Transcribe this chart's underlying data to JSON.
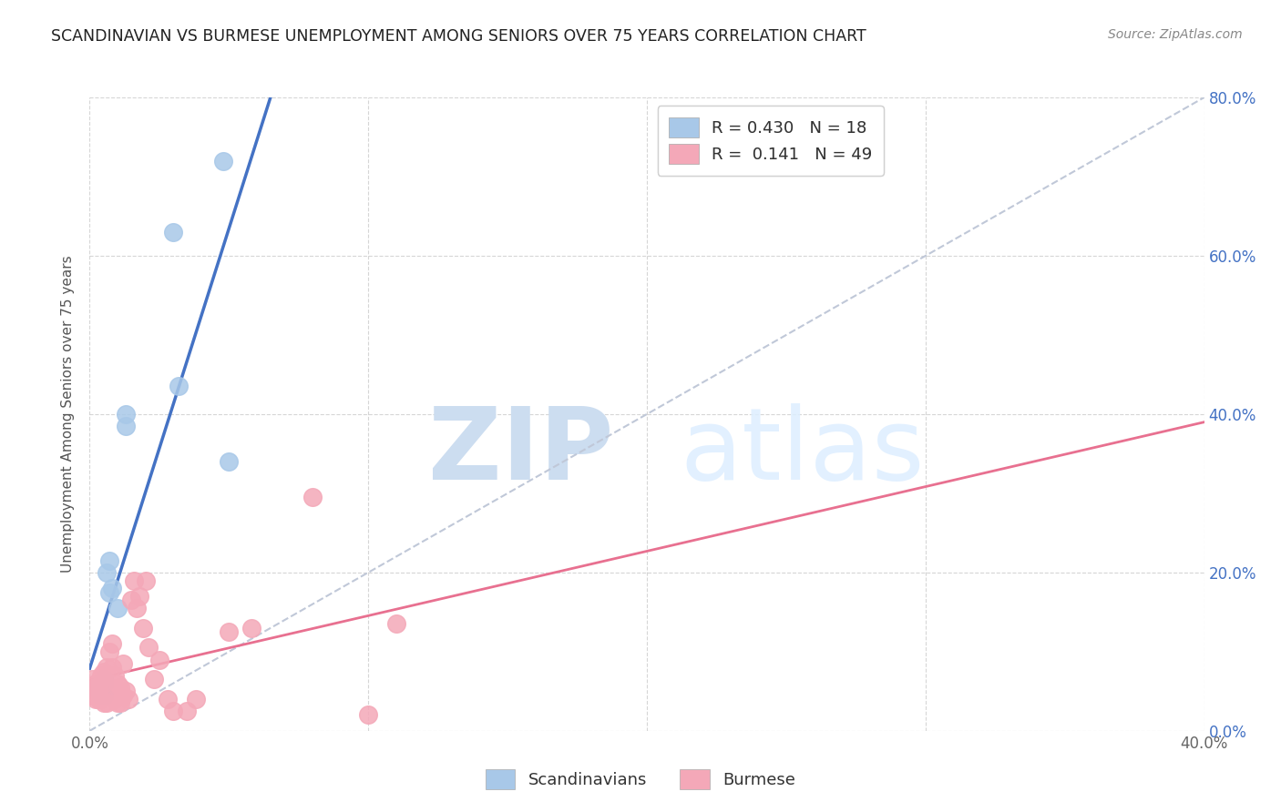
{
  "title": "SCANDINAVIAN VS BURMESE UNEMPLOYMENT AMONG SENIORS OVER 75 YEARS CORRELATION CHART",
  "source": "Source: ZipAtlas.com",
  "ylabel": "Unemployment Among Seniors over 75 years",
  "xlim": [
    0.0,
    0.4
  ],
  "ylim": [
    0.0,
    0.8
  ],
  "xticks": [
    0.0,
    0.1,
    0.2,
    0.3,
    0.4
  ],
  "xticklabels_show": [
    "0.0%",
    "",
    "",
    "",
    "40.0%"
  ],
  "yticks": [
    0.0,
    0.2,
    0.4,
    0.6,
    0.8
  ],
  "left_yticklabels": [
    "",
    "",
    "",
    "",
    ""
  ],
  "right_yticklabels": [
    "0.0%",
    "20.0%",
    "40.0%",
    "60.0%",
    "80.0%"
  ],
  "scandinavian_color": "#a8c8e8",
  "burmese_color": "#f4a8b8",
  "scandinavian_line_color": "#4472c4",
  "burmese_line_color": "#e87090",
  "diagonal_color": "#c0c8d8",
  "R_scandinavian": 0.43,
  "N_scandinavian": 18,
  "R_burmese": 0.141,
  "N_burmese": 49,
  "watermark_zip": "ZIP",
  "watermark_atlas": "atlas",
  "scandinavian_x": [
    0.002,
    0.003,
    0.004,
    0.004,
    0.005,
    0.005,
    0.005,
    0.006,
    0.007,
    0.007,
    0.008,
    0.01,
    0.013,
    0.013,
    0.03,
    0.032,
    0.048,
    0.05
  ],
  "scandinavian_y": [
    0.055,
    0.055,
    0.045,
    0.06,
    0.045,
    0.06,
    0.065,
    0.2,
    0.215,
    0.175,
    0.18,
    0.155,
    0.385,
    0.4,
    0.63,
    0.435,
    0.72,
    0.34
  ],
  "burmese_x": [
    0.001,
    0.001,
    0.001,
    0.002,
    0.002,
    0.002,
    0.003,
    0.003,
    0.003,
    0.003,
    0.004,
    0.004,
    0.005,
    0.005,
    0.005,
    0.006,
    0.006,
    0.007,
    0.007,
    0.008,
    0.008,
    0.009,
    0.009,
    0.01,
    0.01,
    0.011,
    0.011,
    0.012,
    0.012,
    0.013,
    0.014,
    0.015,
    0.016,
    0.017,
    0.018,
    0.019,
    0.02,
    0.021,
    0.023,
    0.025,
    0.028,
    0.03,
    0.035,
    0.038,
    0.05,
    0.058,
    0.08,
    0.1,
    0.11
  ],
  "burmese_y": [
    0.045,
    0.055,
    0.065,
    0.04,
    0.055,
    0.06,
    0.04,
    0.05,
    0.045,
    0.06,
    0.04,
    0.07,
    0.035,
    0.06,
    0.075,
    0.035,
    0.08,
    0.055,
    0.1,
    0.08,
    0.11,
    0.04,
    0.07,
    0.035,
    0.06,
    0.035,
    0.055,
    0.045,
    0.085,
    0.05,
    0.04,
    0.165,
    0.19,
    0.155,
    0.17,
    0.13,
    0.19,
    0.105,
    0.065,
    0.09,
    0.04,
    0.025,
    0.025,
    0.04,
    0.125,
    0.13,
    0.295,
    0.02,
    0.135
  ]
}
